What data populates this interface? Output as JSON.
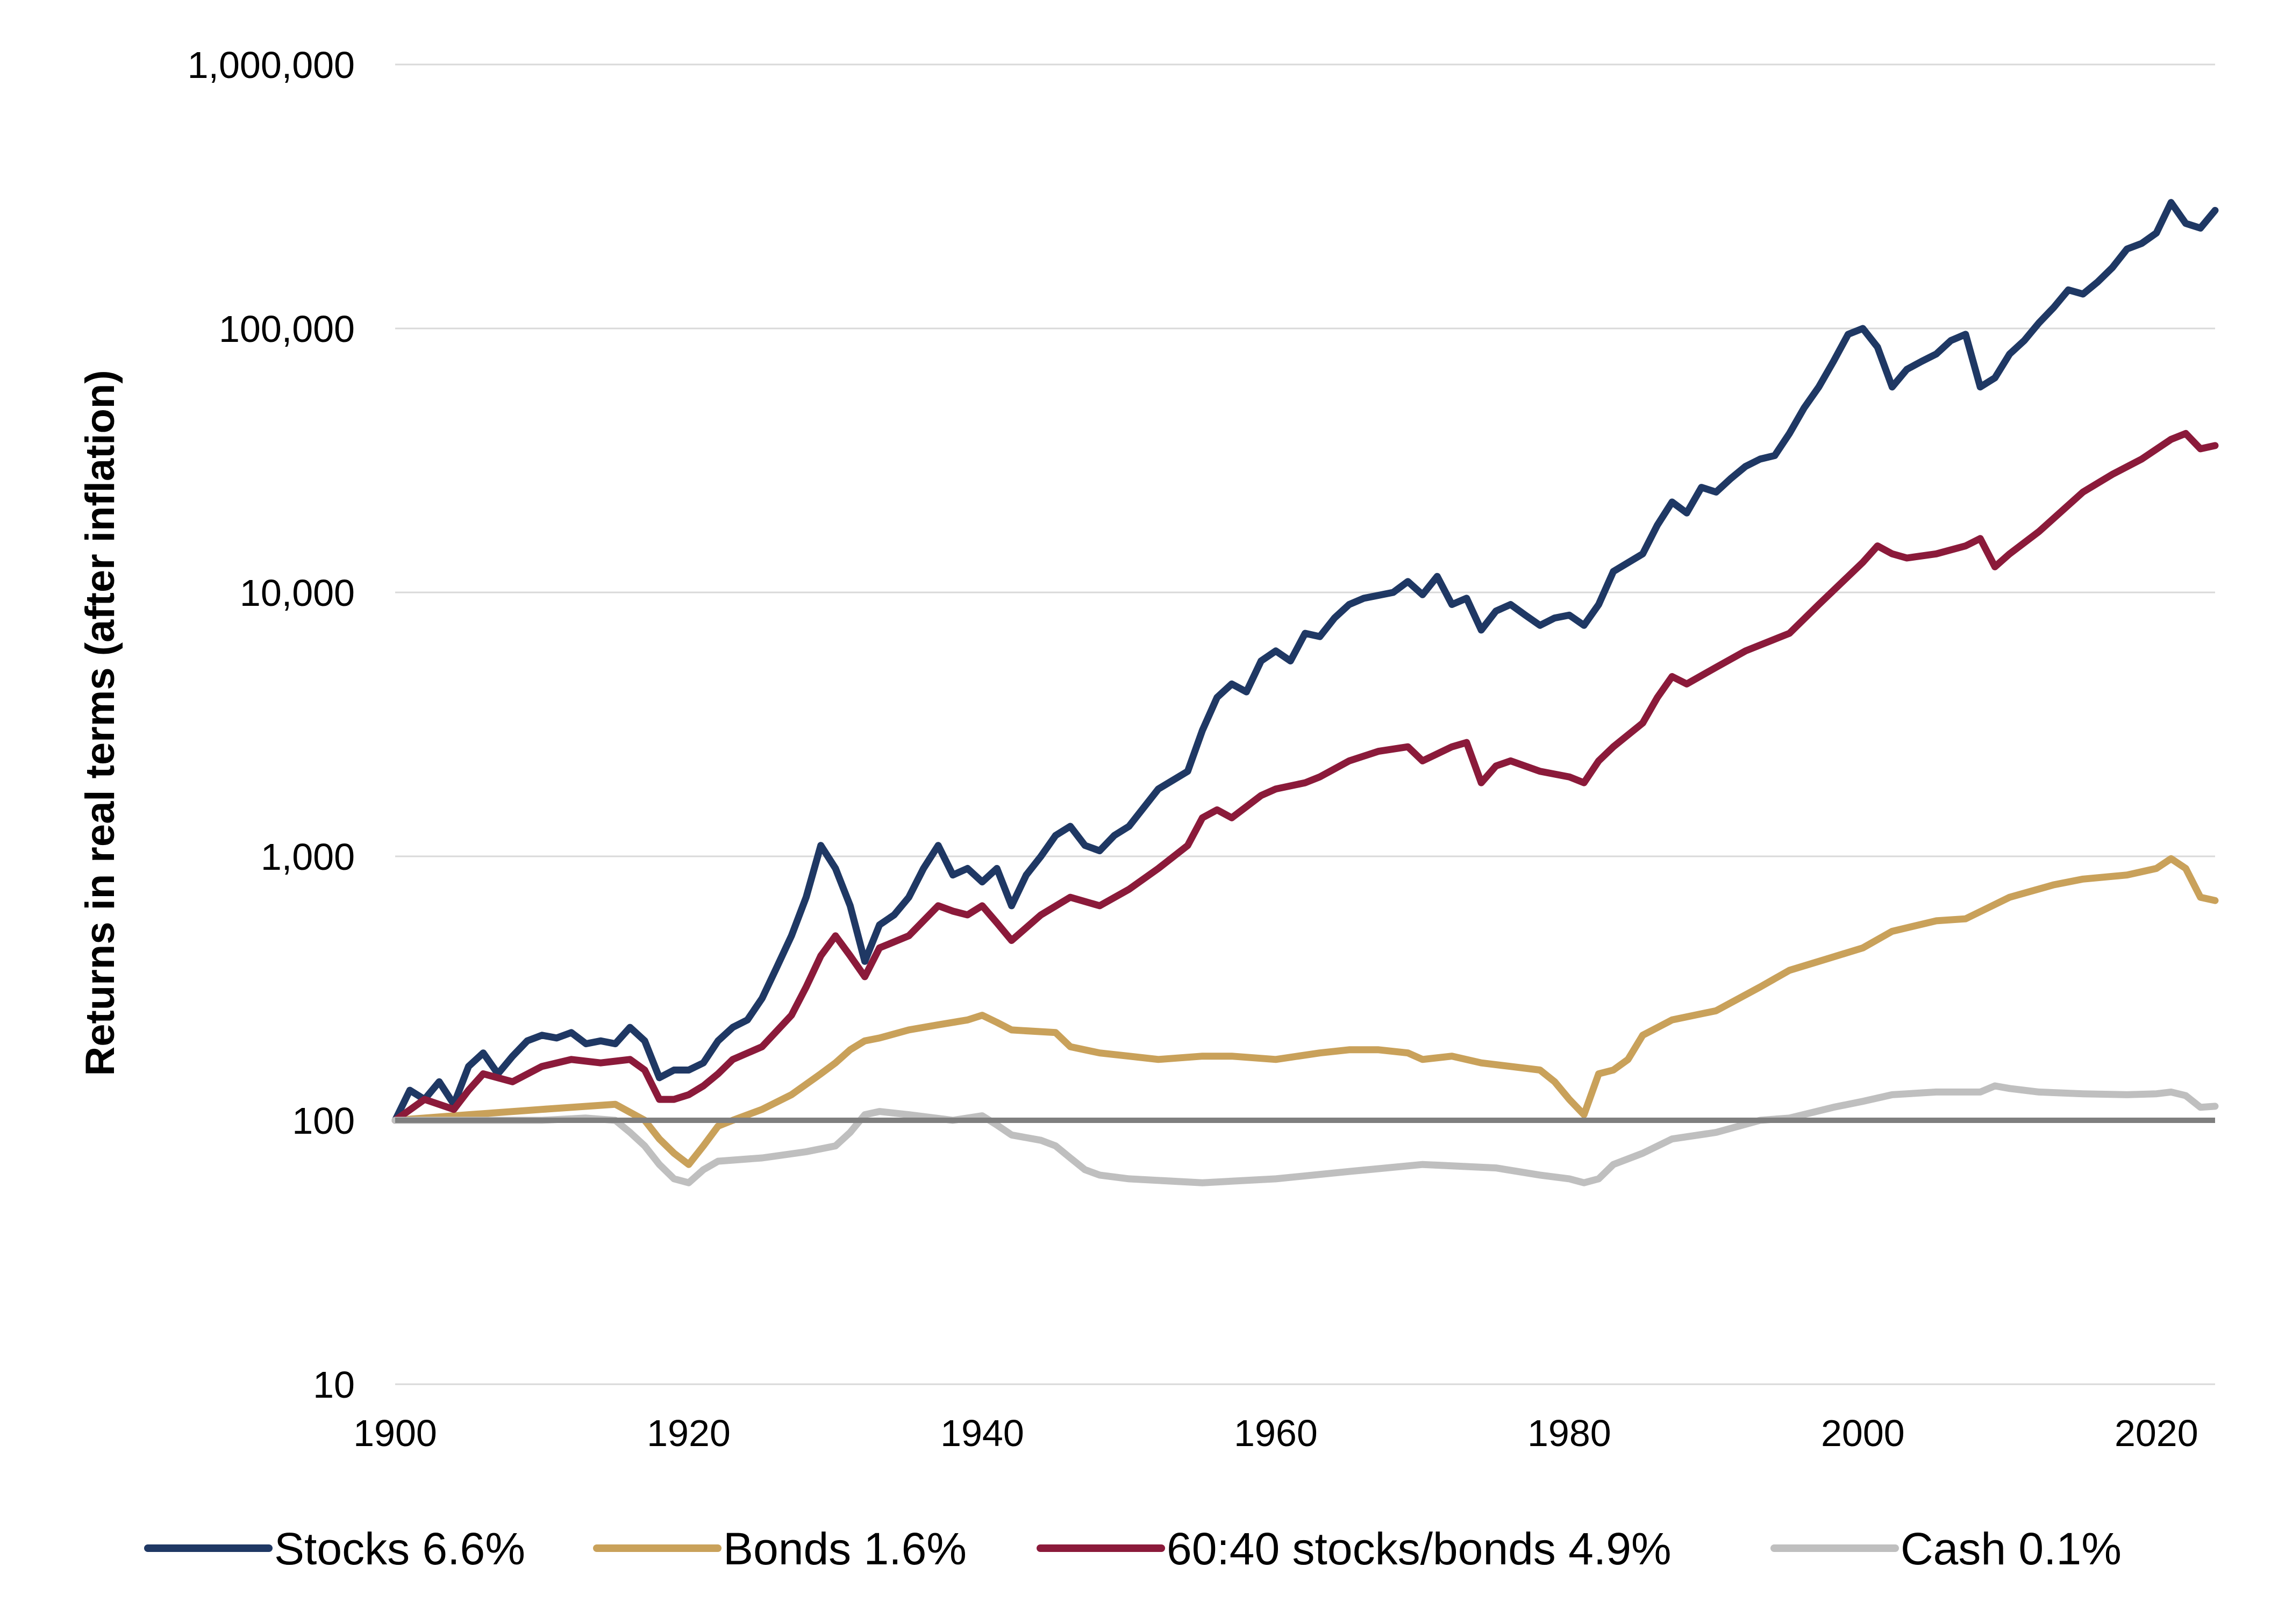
{
  "chart_data": {
    "type": "line",
    "title": "",
    "xlabel": "",
    "ylabel": "Returns in real terms (after inflation)",
    "y_scale": "log",
    "ylim": [
      10,
      1000000
    ],
    "xlim": [
      1900,
      2024
    ],
    "y_ticks": [
      10,
      100,
      1000,
      10000,
      100000,
      1000000
    ],
    "y_tick_labels": [
      "10",
      "100",
      "1,000",
      "10,000",
      "100,000",
      "1,000,000"
    ],
    "x_ticks": [
      1900,
      1920,
      1940,
      1960,
      1980,
      2000,
      2020
    ],
    "x_tick_labels": [
      "1900",
      "1920",
      "1940",
      "1960",
      "1980",
      "2000",
      "2020"
    ],
    "grid": "horizontal",
    "legend_position": "bottom",
    "reference_line": {
      "y": 100,
      "color": "#7f7f7f"
    },
    "series": [
      {
        "name": "Stocks 6.6%",
        "color": "#1f3864",
        "x": [
          1900,
          1901,
          1902,
          1903,
          1904,
          1905,
          1906,
          1907,
          1908,
          1909,
          1910,
          1911,
          1912,
          1913,
          1914,
          1915,
          1916,
          1917,
          1918,
          1919,
          1920,
          1921,
          1922,
          1923,
          1924,
          1925,
          1926,
          1927,
          1928,
          1929,
          1930,
          1931,
          1932,
          1933,
          1934,
          1935,
          1936,
          1937,
          1938,
          1939,
          1940,
          1941,
          1942,
          1943,
          1944,
          1945,
          1946,
          1947,
          1948,
          1949,
          1950,
          1952,
          1954,
          1955,
          1956,
          1957,
          1958,
          1959,
          1960,
          1961,
          1962,
          1963,
          1964,
          1965,
          1966,
          1968,
          1969,
          1970,
          1971,
          1972,
          1973,
          1974,
          1975,
          1976,
          1977,
          1978,
          1979,
          1980,
          1981,
          1982,
          1983,
          1985,
          1986,
          1987,
          1988,
          1989,
          1990,
          1991,
          1992,
          1993,
          1994,
          1995,
          1996,
          1997,
          1998,
          1999,
          2000,
          2001,
          2002,
          2003,
          2004,
          2005,
          2006,
          2007,
          2008,
          2009,
          2010,
          2011,
          2012,
          2013,
          2014,
          2015,
          2016,
          2017,
          2018,
          2019,
          2020,
          2021,
          2022,
          2023,
          2024
        ],
        "y": [
          100,
          130,
          120,
          140,
          115,
          160,
          180,
          150,
          175,
          200,
          210,
          205,
          215,
          195,
          200,
          195,
          225,
          200,
          145,
          155,
          155,
          165,
          200,
          225,
          240,
          290,
          380,
          500,
          700,
          1100,
          900,
          650,
          400,
          550,
          600,
          700,
          900,
          1100,
          850,
          900,
          800,
          900,
          650,
          850,
          1000,
          1200,
          1300,
          1100,
          1050,
          1200,
          1300,
          1800,
          2100,
          3000,
          4000,
          4500,
          4200,
          5500,
          6000,
          5500,
          7000,
          6800,
          8000,
          9000,
          9500,
          10000,
          11000,
          9800,
          11500,
          9000,
          9500,
          7200,
          8500,
          9000,
          8200,
          7500,
          8000,
          8200,
          7500,
          9000,
          12000,
          14000,
          18000,
          22000,
          20000,
          25000,
          24000,
          27000,
          30000,
          32000,
          33000,
          40000,
          50000,
          60000,
          75000,
          95000,
          100000,
          85000,
          60000,
          70000,
          75000,
          80000,
          90000,
          95000,
          60000,
          65000,
          80000,
          90000,
          105000,
          120000,
          140000,
          135000,
          150000,
          170000,
          200000,
          210000,
          230000,
          300000,
          250000,
          240000,
          280000
        ]
      },
      {
        "name": "Bonds 1.6%",
        "color": "#c9a15a",
        "x": [
          1900,
          1905,
          1910,
          1915,
          1917,
          1918,
          1919,
          1920,
          1921,
          1922,
          1923,
          1925,
          1927,
          1929,
          1930,
          1931,
          1932,
          1933,
          1935,
          1937,
          1939,
          1940,
          1941,
          1942,
          1945,
          1946,
          1948,
          1950,
          1952,
          1955,
          1957,
          1960,
          1963,
          1965,
          1967,
          1969,
          1970,
          1972,
          1974,
          1976,
          1978,
          1979,
          1980,
          1981,
          1982,
          1983,
          1984,
          1985,
          1987,
          1990,
          1993,
          1995,
          1997,
          2000,
          2002,
          2005,
          2007,
          2010,
          2013,
          2015,
          2018,
          2020,
          2021,
          2022,
          2023,
          2024
        ],
        "y": [
          100,
          105,
          110,
          115,
          100,
          85,
          75,
          68,
          80,
          95,
          100,
          110,
          125,
          150,
          165,
          185,
          200,
          205,
          220,
          230,
          240,
          250,
          235,
          220,
          215,
          190,
          180,
          175,
          170,
          175,
          175,
          170,
          180,
          185,
          185,
          180,
          170,
          175,
          165,
          160,
          155,
          140,
          120,
          105,
          150,
          155,
          170,
          210,
          240,
          260,
          320,
          370,
          400,
          450,
          520,
          570,
          580,
          700,
          780,
          820,
          850,
          900,
          980,
          900,
          700,
          680
        ]
      },
      {
        "name": "60:40 stocks/bonds 4.9%",
        "color": "#8b1a3a",
        "x": [
          1900,
          1902,
          1904,
          1905,
          1906,
          1908,
          1910,
          1912,
          1914,
          1916,
          1917,
          1918,
          1919,
          1920,
          1921,
          1922,
          1923,
          1925,
          1927,
          1928,
          1929,
          1930,
          1931,
          1932,
          1933,
          1935,
          1937,
          1938,
          1939,
          1940,
          1941,
          1942,
          1944,
          1946,
          1948,
          1950,
          1952,
          1954,
          1955,
          1956,
          1957,
          1959,
          1960,
          1962,
          1963,
          1965,
          1967,
          1969,
          1970,
          1972,
          1973,
          1974,
          1975,
          1976,
          1978,
          1980,
          1981,
          1982,
          1983,
          1985,
          1986,
          1987,
          1988,
          1990,
          1992,
          1995,
          1997,
          2000,
          2001,
          2002,
          2003,
          2005,
          2007,
          2008,
          2009,
          2010,
          2012,
          2015,
          2017,
          2019,
          2021,
          2022,
          2023,
          2024
        ],
        "y": [
          100,
          120,
          110,
          130,
          150,
          140,
          160,
          170,
          165,
          170,
          155,
          120,
          120,
          125,
          135,
          150,
          170,
          190,
          250,
          320,
          420,
          500,
          420,
          350,
          450,
          500,
          650,
          620,
          600,
          650,
          560,
          480,
          600,
          700,
          650,
          750,
          900,
          1100,
          1400,
          1500,
          1400,
          1700,
          1800,
          1900,
          2000,
          2300,
          2500,
          2600,
          2300,
          2600,
          2700,
          1900,
          2200,
          2300,
          2100,
          2000,
          1900,
          2300,
          2600,
          3200,
          4000,
          4800,
          4500,
          5200,
          6000,
          7000,
          9000,
          13000,
          15000,
          14000,
          13500,
          14000,
          15000,
          16000,
          12500,
          14000,
          17000,
          24000,
          28000,
          32000,
          38000,
          40000,
          35000,
          36000
        ]
      },
      {
        "name": "Cash 0.1%",
        "color": "#bfbfbf",
        "x": [
          1900,
          1905,
          1910,
          1913,
          1915,
          1916,
          1917,
          1918,
          1919,
          1920,
          1921,
          1922,
          1925,
          1928,
          1930,
          1931,
          1932,
          1933,
          1935,
          1938,
          1940,
          1941,
          1942,
          1944,
          1945,
          1946,
          1947,
          1948,
          1950,
          1955,
          1960,
          1965,
          1970,
          1975,
          1978,
          1980,
          1981,
          1982,
          1983,
          1985,
          1987,
          1990,
          1993,
          1995,
          1998,
          2000,
          2002,
          2005,
          2008,
          2009,
          2010,
          2012,
          2015,
          2018,
          2020,
          2021,
          2022,
          2023,
          2024
        ],
        "y": [
          100,
          100,
          100,
          102,
          100,
          90,
          80,
          68,
          60,
          58,
          65,
          70,
          72,
          76,
          80,
          90,
          105,
          108,
          105,
          100,
          104,
          96,
          88,
          84,
          80,
          72,
          65,
          62,
          60,
          58,
          60,
          64,
          68,
          66,
          62,
          60,
          58,
          60,
          68,
          75,
          85,
          90,
          100,
          102,
          112,
          118,
          125,
          128,
          128,
          135,
          132,
          128,
          126,
          125,
          126,
          128,
          124,
          112,
          113
        ]
      }
    ]
  }
}
